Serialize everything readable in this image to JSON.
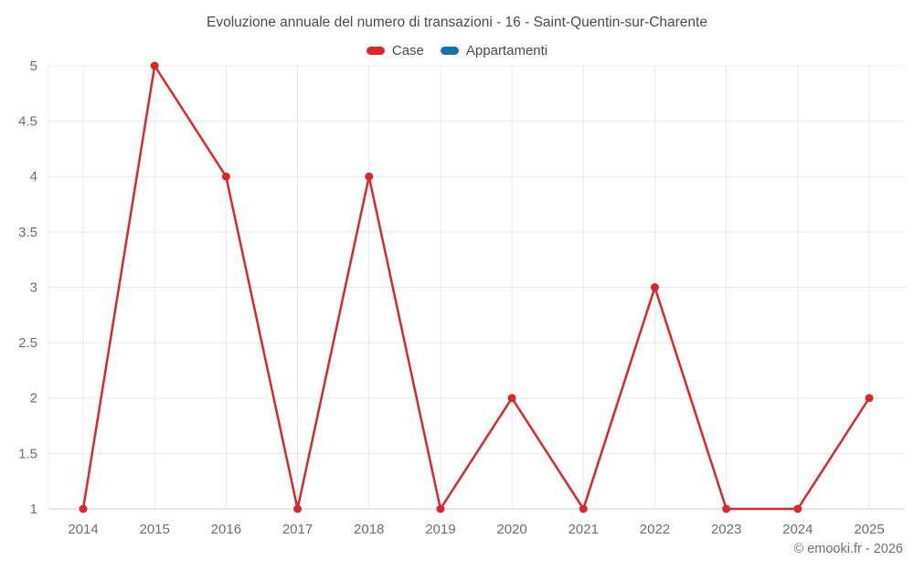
{
  "chart_data": {
    "type": "line",
    "title": "Evoluzione annuale del numero di transazioni - 16 - Saint-Quentin-sur-Charente",
    "categories": [
      "2014",
      "2015",
      "2016",
      "2017",
      "2018",
      "2019",
      "2020",
      "2021",
      "2022",
      "2023",
      "2024",
      "2025"
    ],
    "series": [
      {
        "name": "Case",
        "color": "#d9272e",
        "values": [
          1,
          5,
          4,
          1,
          4,
          1,
          2,
          1,
          3,
          1,
          1,
          2
        ]
      },
      {
        "name": "Appartamenti",
        "color": "#1273a8",
        "values": []
      }
    ],
    "ylim": [
      1,
      5
    ],
    "ytick_step": 0.5,
    "yticks": [
      "1",
      "1.5",
      "2",
      "2.5",
      "3",
      "3.5",
      "4",
      "4.5",
      "5"
    ],
    "xlabel": "",
    "ylabel": "",
    "grid": true,
    "legend_position": "top",
    "marker": "circle"
  },
  "footer": {
    "copyright": "© emooki.fr - 2026"
  }
}
